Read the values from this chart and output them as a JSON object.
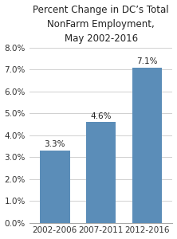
{
  "title": "Percent Change in DC’s Total\nNonFarm Employment,\nMay 2002-2016",
  "categories": [
    "2002-2006",
    "2007-2011",
    "2012-2016"
  ],
  "values": [
    3.3,
    4.6,
    7.1
  ],
  "bar_color": "#5b8db8",
  "ylim": [
    0,
    8.0
  ],
  "yticks": [
    0.0,
    1.0,
    2.0,
    3.0,
    4.0,
    5.0,
    6.0,
    7.0,
    8.0
  ],
  "bar_labels": [
    "3.3%",
    "4.6%",
    "7.1%"
  ],
  "title_fontsize": 8.5,
  "tick_fontsize": 7.5,
  "label_fontsize": 7.5,
  "background_color": "#ffffff",
  "grid_color": "#d0d0d0",
  "bar_width": 0.65
}
